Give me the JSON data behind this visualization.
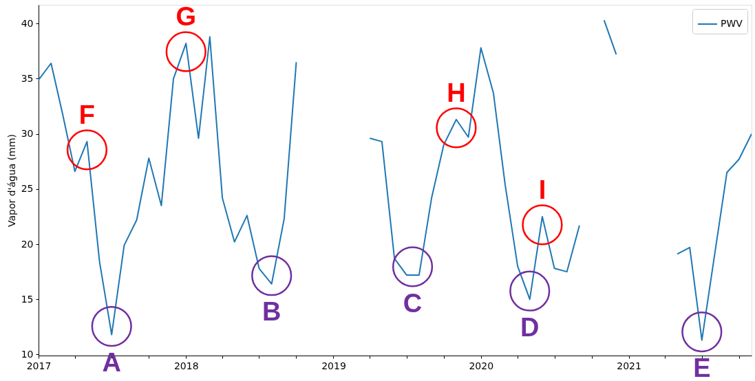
{
  "chart_data": {
    "type": "line",
    "ylabel": "Vapor d'água (mm)",
    "x": [
      "2017-01",
      "2017-02",
      "2017-03",
      "2017-04",
      "2017-05",
      "2017-06",
      "2017-07",
      "2017-08",
      "2017-09",
      "2017-10",
      "2017-11",
      "2017-12",
      "2018-01",
      "2018-02",
      "2018-03",
      "2018-04",
      "2018-05",
      "2018-06",
      "2018-07",
      "2018-08",
      "2018-09",
      "2018-10",
      "2018-11",
      "2018-12",
      "2019-01",
      "2019-02",
      "2019-03",
      "2019-04",
      "2019-05",
      "2019-06",
      "2019-07",
      "2019-08",
      "2019-09",
      "2019-10",
      "2019-11",
      "2019-12",
      "2020-01",
      "2020-02",
      "2020-03",
      "2020-04",
      "2020-05",
      "2020-06",
      "2020-07",
      "2020-08",
      "2020-09",
      "2020-10",
      "2020-11",
      "2020-12",
      "2021-01",
      "2021-02",
      "2021-03",
      "2021-04",
      "2021-05",
      "2021-06",
      "2021-07",
      "2021-08",
      "2021-09",
      "2021-10",
      "2021-11"
    ],
    "series": [
      {
        "name": "PWV",
        "color": "#1f77b4",
        "values": [
          34.9,
          36.4,
          31.9,
          26.6,
          29.3,
          18.4,
          11.8,
          19.9,
          22.2,
          27.8,
          23.5,
          35.0,
          38.2,
          29.6,
          38.8,
          24.2,
          20.2,
          22.6,
          17.8,
          16.4,
          22.3,
          36.5,
          null,
          null,
          null,
          null,
          null,
          29.6,
          29.3,
          18.7,
          17.2,
          17.2,
          24.2,
          29.0,
          31.3,
          29.7,
          37.8,
          33.7,
          25.4,
          18.0,
          15.0,
          22.5,
          17.8,
          17.5,
          21.7,
          null,
          40.3,
          37.2,
          null,
          null,
          null,
          null,
          19.1,
          19.7,
          11.3,
          18.9,
          26.5,
          27.7,
          30.0
        ]
      }
    ],
    "xlim": [
      "2017-01",
      "2021-11"
    ],
    "ylim": [
      9.9,
      41.7
    ],
    "xticks": [
      "2017",
      {
        "value": "2017-04",
        "label": null
      },
      {
        "value": "2017-07",
        "label": null
      },
      {
        "value": "2017-10",
        "label": null
      },
      "2018",
      {
        "value": "2018-04",
        "label": null
      },
      {
        "value": "2018-07",
        "label": null
      },
      {
        "value": "2018-10",
        "label": null
      },
      "2019",
      {
        "value": "2019-04",
        "label": null
      },
      {
        "value": "2019-07",
        "label": null
      },
      {
        "value": "2019-10",
        "label": null
      },
      "2020",
      {
        "value": "2020-04",
        "label": null
      },
      {
        "value": "2020-07",
        "label": null
      },
      {
        "value": "2020-10",
        "label": null
      },
      "2021",
      {
        "value": "2021-04",
        "label": null
      },
      {
        "value": "2021-07",
        "label": null
      },
      {
        "value": "2021-10",
        "label": null
      }
    ],
    "yticks": [
      10,
      15,
      20,
      25,
      30,
      35,
      40
    ],
    "grid": false,
    "legend": "top right",
    "annotations": [
      {
        "text": "F",
        "x": "2017-05",
        "y": 29.3
      },
      {
        "text": "G",
        "x": "2018-01",
        "y": 38.2
      },
      {
        "text": "H",
        "x": "2019-11",
        "y": 31.3
      },
      {
        "text": "I",
        "x": "2020-06",
        "y": 22.5
      },
      {
        "text": "A",
        "x": "2017-07",
        "y": 11.8
      },
      {
        "text": "B",
        "x": "2018-08",
        "y": 16.4
      },
      {
        "text": "C",
        "x": "2019-07-16",
        "y": 17.2
      },
      {
        "text": "D",
        "x": "2020-05",
        "y": 15.0
      },
      {
        "text": "E",
        "x": "2021-07",
        "y": 11.3
      }
    ]
  }
}
